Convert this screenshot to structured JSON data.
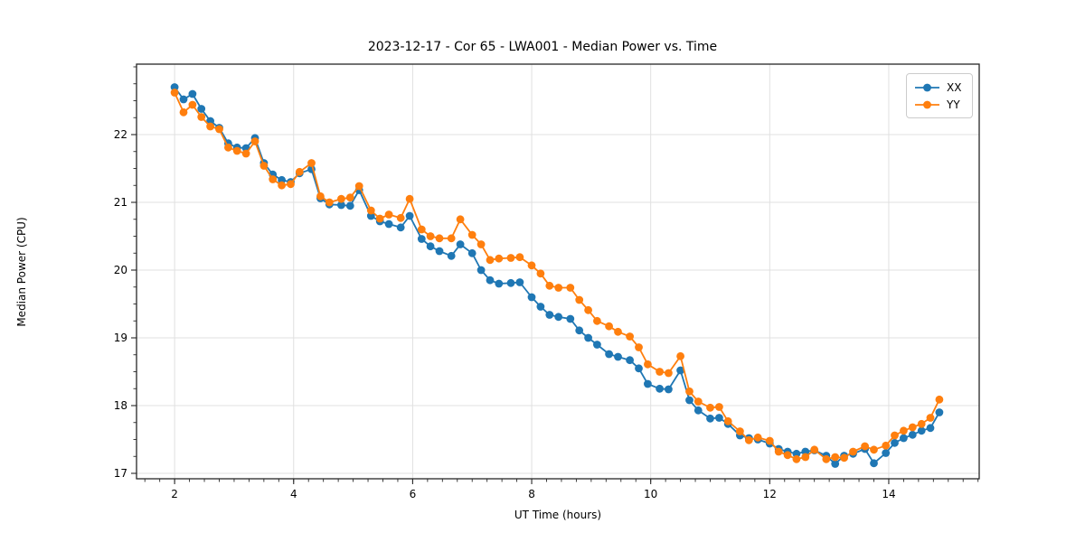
{
  "figure": {
    "title": "2023-12-17 - Cor 65 - LWA001 - Median Power vs. Time"
  },
  "chart_data": {
    "type": "line",
    "title": "2023-12-17 - Cor 65 - LWA001 - Median Power vs. Time",
    "xlabel": "UT Time (hours)",
    "ylabel": "Median Power (CPU)",
    "xlim": [
      1.36,
      15.52
    ],
    "ylim": [
      16.92,
      23.04
    ],
    "x_major_ticks": [
      2,
      4,
      6,
      8,
      10,
      12,
      14
    ],
    "y_major_ticks": [
      17,
      18,
      19,
      20,
      21,
      22
    ],
    "minor_tick_step": 0.25,
    "grid": true,
    "grid_color": "#e0e0e0",
    "spine_color": "#262626",
    "legend_position": "upper right",
    "x": [
      2.0,
      2.15,
      2.3,
      2.45,
      2.6,
      2.75,
      2.9,
      3.05,
      3.2,
      3.35,
      3.5,
      3.65,
      3.8,
      3.95,
      4.1,
      4.3,
      4.45,
      4.6,
      4.8,
      4.95,
      5.1,
      5.3,
      5.45,
      5.6,
      5.8,
      5.95,
      6.15,
      6.3,
      6.45,
      6.65,
      6.8,
      7.0,
      7.15,
      7.3,
      7.45,
      7.65,
      7.8,
      8.0,
      8.15,
      8.3,
      8.45,
      8.65,
      8.8,
      8.95,
      9.1,
      9.3,
      9.45,
      9.65,
      9.8,
      9.95,
      10.15,
      10.3,
      10.5,
      10.65,
      10.8,
      11.0,
      11.15,
      11.3,
      11.5,
      11.65,
      11.8,
      12.0,
      12.15,
      12.3,
      12.45,
      12.6,
      12.75,
      12.95,
      13.1,
      13.25,
      13.4,
      13.6,
      13.75,
      13.95,
      14.1,
      14.25,
      14.4,
      14.55,
      14.7,
      14.85
    ],
    "series": [
      {
        "name": "XX",
        "color": "#1f77b4",
        "marker": "circle",
        "values": [
          22.7,
          22.52,
          22.6,
          22.38,
          22.2,
          22.1,
          21.87,
          21.81,
          21.8,
          21.95,
          21.58,
          21.41,
          21.33,
          21.3,
          21.43,
          21.49,
          21.06,
          20.97,
          20.96,
          20.95,
          21.18,
          20.8,
          20.72,
          20.68,
          20.63,
          20.8,
          20.46,
          20.35,
          20.28,
          20.21,
          20.38,
          20.25,
          20.0,
          19.85,
          19.8,
          19.81,
          19.82,
          19.6,
          19.46,
          19.34,
          19.31,
          19.28,
          19.11,
          19.0,
          18.9,
          18.76,
          18.72,
          18.67,
          18.55,
          18.32,
          18.25,
          18.24,
          18.52,
          18.08,
          17.93,
          17.81,
          17.82,
          17.73,
          17.56,
          17.52,
          17.5,
          17.44,
          17.36,
          17.32,
          17.29,
          17.32,
          17.34,
          17.26,
          17.14,
          17.26,
          17.29,
          17.36,
          17.15,
          17.3,
          17.45,
          17.52,
          17.57,
          17.63,
          17.67,
          17.9
        ]
      },
      {
        "name": "YY",
        "color": "#ff7f0e",
        "marker": "circle",
        "values": [
          22.62,
          22.33,
          22.44,
          22.26,
          22.12,
          22.08,
          21.81,
          21.76,
          21.72,
          21.9,
          21.54,
          21.34,
          21.25,
          21.27,
          21.45,
          21.58,
          21.09,
          21.0,
          21.05,
          21.07,
          21.24,
          20.88,
          20.76,
          20.82,
          20.77,
          21.05,
          20.6,
          20.5,
          20.47,
          20.47,
          20.75,
          20.52,
          20.38,
          20.15,
          20.17,
          20.18,
          20.19,
          20.07,
          19.95,
          19.77,
          19.74,
          19.74,
          19.56,
          19.41,
          19.25,
          19.17,
          19.09,
          19.02,
          18.86,
          18.61,
          18.5,
          18.48,
          18.73,
          18.21,
          18.06,
          17.97,
          17.98,
          17.77,
          17.62,
          17.49,
          17.53,
          17.48,
          17.32,
          17.27,
          17.21,
          17.24,
          17.35,
          17.21,
          17.24,
          17.23,
          17.32,
          17.4,
          17.35,
          17.41,
          17.56,
          17.63,
          17.68,
          17.73,
          17.82,
          18.09
        ]
      }
    ]
  },
  "legend": {
    "items": [
      {
        "label": "XX",
        "color": "#1f77b4"
      },
      {
        "label": "YY",
        "color": "#ff7f0e"
      }
    ]
  }
}
